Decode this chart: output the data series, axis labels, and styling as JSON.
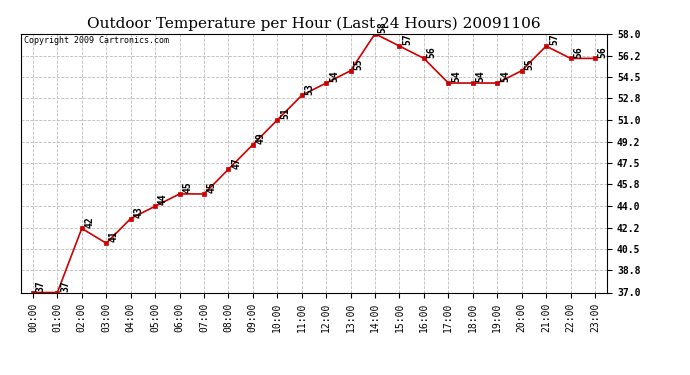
{
  "title": "Outdoor Temperature per Hour (Last 24 Hours) 20091106",
  "copyright": "Copyright 2009 Cartronics.com",
  "hours": [
    "00:00",
    "01:00",
    "02:00",
    "03:00",
    "04:00",
    "05:00",
    "06:00",
    "07:00",
    "08:00",
    "09:00",
    "10:00",
    "11:00",
    "12:00",
    "13:00",
    "14:00",
    "15:00",
    "16:00",
    "17:00",
    "18:00",
    "19:00",
    "20:00",
    "21:00",
    "22:00",
    "23:00"
  ],
  "temps": [
    37.0,
    37.0,
    42.2,
    41.0,
    43.0,
    44.0,
    45.0,
    45.0,
    47.0,
    49.0,
    51.0,
    53.0,
    54.0,
    55.0,
    58.0,
    57.0,
    56.0,
    54.0,
    54.0,
    54.0,
    55.0,
    57.0,
    56.0,
    56.0
  ],
  "point_labels": [
    "37",
    "37",
    "42",
    "41",
    "43",
    "44",
    "45",
    "45",
    "47",
    "49",
    "51",
    "53",
    "54",
    "55",
    "58",
    "57",
    "56",
    "54",
    "54",
    "54",
    "55",
    "57",
    "56",
    "56"
  ],
  "line_color": "#cc0000",
  "marker_color": "#cc0000",
  "bg_color": "#ffffff",
  "grid_color": "#bbbbbb",
  "title_fontsize": 11,
  "copyright_fontsize": 6,
  "label_fontsize": 7,
  "tick_fontsize": 7,
  "ylim_min": 37.0,
  "ylim_max": 58.0,
  "yticks": [
    37.0,
    38.8,
    40.5,
    42.2,
    44.0,
    45.8,
    47.5,
    49.2,
    51.0,
    52.8,
    54.5,
    56.2,
    58.0
  ]
}
